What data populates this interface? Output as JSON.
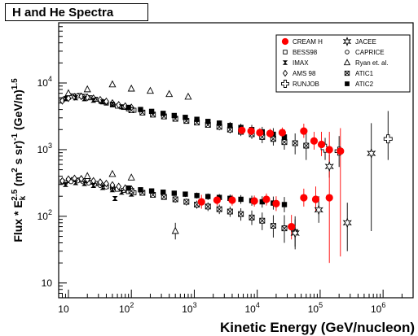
{
  "chart_data": {
    "type": "scatter",
    "title": "H and He Spectra",
    "xlabel": "Kinetic Energy (GeV/nucleon)",
    "ylabel": "Flux * E_k^2.5 (m^2 s sr)^-1 (GeV/n)^1.5",
    "xscale": "log",
    "yscale": "log",
    "xlim": [
      7,
      3000000
    ],
    "ylim": [
      6,
      80000
    ],
    "x_ticks": [
      {
        "value": 10,
        "base": "10",
        "exp": ""
      },
      {
        "value": 100,
        "base": "10",
        "exp": "2"
      },
      {
        "value": 1000,
        "base": "10",
        "exp": "3"
      },
      {
        "value": 10000,
        "base": "10",
        "exp": "4"
      },
      {
        "value": 100000,
        "base": "10",
        "exp": "5"
      },
      {
        "value": 1000000,
        "base": "10",
        "exp": "6"
      }
    ],
    "y_ticks": [
      {
        "value": 10,
        "base": "10",
        "exp": ""
      },
      {
        "value": 100,
        "base": "10",
        "exp": "2"
      },
      {
        "value": 1000,
        "base": "10",
        "exp": "3"
      },
      {
        "value": 10000,
        "base": "10",
        "exp": "4"
      }
    ],
    "legend_position": "top-right",
    "series": [
      {
        "name": "CREAM H",
        "marker": "filled-circle",
        "color": "#ff0000",
        "points": [
          {
            "x": 1300,
            "y": 165,
            "yl": 130,
            "yh": 210
          },
          {
            "x": 2300,
            "y": 175,
            "yl": 145,
            "yh": 210
          },
          {
            "x": 4000,
            "y": 175,
            "yl": 145,
            "yh": 210
          },
          {
            "x": 5700,
            "y": 1950,
            "yl": 1700,
            "yh": 2250
          },
          {
            "x": 8000,
            "y": 1900,
            "yl": 1650,
            "yh": 2200
          },
          {
            "x": 9000,
            "y": 170,
            "yl": 140,
            "yh": 205
          },
          {
            "x": 11000,
            "y": 1800,
            "yl": 1550,
            "yh": 2100
          },
          {
            "x": 14000,
            "y": 180,
            "yl": 145,
            "yh": 220
          },
          {
            "x": 16000,
            "y": 1750,
            "yl": 1500,
            "yh": 2050
          },
          {
            "x": 20000,
            "y": 155,
            "yl": 120,
            "yh": 200
          },
          {
            "x": 25000,
            "y": 1800,
            "yl": 1500,
            "yh": 2150
          },
          {
            "x": 35000,
            "y": 70,
            "yl": 45,
            "yh": 105
          },
          {
            "x": 55000,
            "y": 1900,
            "yl": 1500,
            "yh": 2450
          },
          {
            "x": 55000,
            "y": 190,
            "yl": 140,
            "yh": 260
          },
          {
            "x": 80000,
            "y": 1350,
            "yl": 1000,
            "yh": 1850
          },
          {
            "x": 85000,
            "y": 180,
            "yl": 120,
            "yh": 280
          },
          {
            "x": 105000,
            "y": 1200,
            "yl": 800,
            "yh": 1850
          },
          {
            "x": 140000,
            "y": 1000,
            "yl": 550,
            "yh": 1850
          },
          {
            "x": 140000,
            "y": 190,
            "yl": 20,
            "yh": 600
          },
          {
            "x": 210000,
            "y": 950,
            "yl": 25,
            "yh": 2100
          }
        ]
      },
      {
        "name": "BESS98",
        "marker": "open-square",
        "color": "#000000",
        "points": [
          {
            "x": 8,
            "y": 5600
          },
          {
            "x": 10,
            "y": 6100
          },
          {
            "x": 12,
            "y": 6400
          },
          {
            "x": 15,
            "y": 6500
          },
          {
            "x": 18,
            "y": 6300
          },
          {
            "x": 22,
            "y": 6000
          },
          {
            "x": 27,
            "y": 5700
          },
          {
            "x": 33,
            "y": 5300
          },
          {
            "x": 40,
            "y": 5000
          },
          {
            "x": 50,
            "y": 4700
          },
          {
            "x": 60,
            "y": 4500
          },
          {
            "x": 75,
            "y": 4300
          },
          {
            "x": 90,
            "y": 4100
          },
          {
            "x": 110,
            "y": 3900
          },
          {
            "x": 8,
            "y": 330
          },
          {
            "x": 10,
            "y": 345
          },
          {
            "x": 12,
            "y": 355
          },
          {
            "x": 15,
            "y": 350
          },
          {
            "x": 18,
            "y": 340
          },
          {
            "x": 22,
            "y": 325
          },
          {
            "x": 27,
            "y": 310
          },
          {
            "x": 33,
            "y": 295
          },
          {
            "x": 40,
            "y": 280
          },
          {
            "x": 50,
            "y": 265
          },
          {
            "x": 60,
            "y": 255
          },
          {
            "x": 75,
            "y": 245
          },
          {
            "x": 90,
            "y": 235
          },
          {
            "x": 110,
            "y": 225
          }
        ]
      },
      {
        "name": "IMAX",
        "marker": "bowtie",
        "color": "#000000",
        "points": [
          {
            "x": 9,
            "y": 5800
          },
          {
            "x": 13,
            "y": 6000
          },
          {
            "x": 18,
            "y": 5800
          },
          {
            "x": 25,
            "y": 5500
          },
          {
            "x": 35,
            "y": 5200
          },
          {
            "x": 50,
            "y": 4800
          },
          {
            "x": 70,
            "y": 4400
          },
          {
            "x": 100,
            "y": 4000
          },
          {
            "x": 9,
            "y": 300
          },
          {
            "x": 13,
            "y": 320
          },
          {
            "x": 18,
            "y": 310
          },
          {
            "x": 25,
            "y": 290
          },
          {
            "x": 35,
            "y": 270
          },
          {
            "x": 50,
            "y": 250
          },
          {
            "x": 55,
            "y": 185
          },
          {
            "x": 70,
            "y": 230
          },
          {
            "x": 100,
            "y": 215
          }
        ]
      },
      {
        "name": "AMS 98",
        "marker": "open-diamond",
        "color": "#000000",
        "points": [
          {
            "x": 8,
            "y": 5400
          },
          {
            "x": 10,
            "y": 5900
          },
          {
            "x": 12.5,
            "y": 6200
          },
          {
            "x": 16,
            "y": 6300
          },
          {
            "x": 20,
            "y": 6100
          },
          {
            "x": 25,
            "y": 5900
          },
          {
            "x": 32,
            "y": 5600
          },
          {
            "x": 40,
            "y": 5300
          },
          {
            "x": 50,
            "y": 5000
          },
          {
            "x": 63,
            "y": 4700
          },
          {
            "x": 80,
            "y": 4500
          },
          {
            "x": 100,
            "y": 4300
          },
          {
            "x": 8,
            "y": 340
          },
          {
            "x": 10,
            "y": 360
          },
          {
            "x": 12.5,
            "y": 370
          },
          {
            "x": 16,
            "y": 365
          },
          {
            "x": 20,
            "y": 355
          },
          {
            "x": 25,
            "y": 340
          },
          {
            "x": 32,
            "y": 325
          },
          {
            "x": 40,
            "y": 310
          },
          {
            "x": 50,
            "y": 295
          },
          {
            "x": 63,
            "y": 280
          },
          {
            "x": 80,
            "y": 265
          },
          {
            "x": 100,
            "y": 255
          }
        ]
      },
      {
        "name": "RUNJOB",
        "marker": "open-cross",
        "color": "#000000",
        "points": [
          {
            "x": 120000,
            "y": 1050,
            "yl": 700,
            "yh": 1500
          },
          {
            "x": 200000,
            "y": 950,
            "yl": 550,
            "yh": 1600
          },
          {
            "x": 1200000,
            "y": 1450,
            "yl": 700,
            "yh": 3800
          }
        ]
      },
      {
        "name": "JACEE",
        "marker": "open-star",
        "color": "#000000",
        "points": [
          {
            "x": 40000,
            "y": 56,
            "yl": 35,
            "yh": 90
          },
          {
            "x": 95000,
            "y": 125,
            "yl": 80,
            "yh": 200
          },
          {
            "x": 140000,
            "y": 560,
            "yl": 380,
            "yh": 850
          },
          {
            "x": 270000,
            "y": 80,
            "yl": 30,
            "yh": 160
          },
          {
            "x": 650000,
            "y": 880,
            "yl": 60,
            "yh": 2500
          }
        ]
      },
      {
        "name": "CAPRICE",
        "marker": "open-circle",
        "color": "#000000",
        "points": [
          {
            "x": 9,
            "y": 5900
          },
          {
            "x": 11,
            "y": 6300
          },
          {
            "x": 14,
            "y": 6400
          },
          {
            "x": 17,
            "y": 6200
          },
          {
            "x": 21,
            "y": 6000
          },
          {
            "x": 26,
            "y": 5700
          },
          {
            "x": 32,
            "y": 5400
          },
          {
            "x": 40,
            "y": 5100
          },
          {
            "x": 9,
            "y": 320
          },
          {
            "x": 11,
            "y": 330
          },
          {
            "x": 14,
            "y": 340
          },
          {
            "x": 17,
            "y": 330
          },
          {
            "x": 21,
            "y": 315
          },
          {
            "x": 26,
            "y": 300
          },
          {
            "x": 32,
            "y": 290
          },
          {
            "x": 40,
            "y": 275
          }
        ]
      },
      {
        "name": "Ryan et. al.",
        "marker": "open-triangle",
        "color": "#000000",
        "points": [
          {
            "x": 10,
            "y": 7000
          },
          {
            "x": 20,
            "y": 8000
          },
          {
            "x": 50,
            "y": 9500
          },
          {
            "x": 100,
            "y": 8200
          },
          {
            "x": 200,
            "y": 7600
          },
          {
            "x": 400,
            "y": 6800
          },
          {
            "x": 800,
            "y": 6200
          },
          {
            "x": 20,
            "y": 400
          },
          {
            "x": 50,
            "y": 430
          },
          {
            "x": 100,
            "y": 380
          },
          {
            "x": 500,
            "y": 60,
            "yl": 45,
            "yh": 80
          }
        ]
      },
      {
        "name": "ATIC1",
        "marker": "x-square",
        "color": "#000000",
        "points": [
          {
            "x": 100,
            "y": 3900,
            "yl": 3700,
            "yh": 4100
          },
          {
            "x": 150,
            "y": 3600,
            "yl": 3400,
            "yh": 3800
          },
          {
            "x": 220,
            "y": 3350,
            "yl": 3150,
            "yh": 3550
          },
          {
            "x": 330,
            "y": 3150,
            "yl": 2950,
            "yh": 3350
          },
          {
            "x": 500,
            "y": 2900,
            "yl": 2700,
            "yh": 3100
          },
          {
            "x": 750,
            "y": 2700,
            "yl": 2500,
            "yh": 2900
          },
          {
            "x": 1100,
            "y": 2550,
            "yl": 2350,
            "yh": 2750
          },
          {
            "x": 1650,
            "y": 2350,
            "yl": 2150,
            "yh": 2600
          },
          {
            "x": 2500,
            "y": 2200,
            "yl": 1950,
            "yh": 2450
          },
          {
            "x": 3700,
            "y": 2000,
            "yl": 1750,
            "yh": 2300
          },
          {
            "x": 5500,
            "y": 1850,
            "yl": 1600,
            "yh": 2150
          },
          {
            "x": 8200,
            "y": 1700,
            "yl": 1450,
            "yh": 2000
          },
          {
            "x": 12000,
            "y": 1550,
            "yl": 1250,
            "yh": 1900
          },
          {
            "x": 18000,
            "y": 1450,
            "yl": 1150,
            "yh": 1850
          },
          {
            "x": 27000,
            "y": 1300,
            "yl": 1000,
            "yh": 1700
          },
          {
            "x": 40000,
            "y": 1250,
            "yl": 850,
            "yh": 1750
          },
          {
            "x": 60000,
            "y": 1150,
            "yl": 700,
            "yh": 1750
          },
          {
            "x": 100,
            "y": 240,
            "yl": 220,
            "yh": 260
          },
          {
            "x": 150,
            "y": 225,
            "yl": 205,
            "yh": 245
          },
          {
            "x": 220,
            "y": 210,
            "yl": 190,
            "yh": 230
          },
          {
            "x": 330,
            "y": 195,
            "yl": 175,
            "yh": 215
          },
          {
            "x": 500,
            "y": 180,
            "yl": 160,
            "yh": 200
          },
          {
            "x": 750,
            "y": 165,
            "yl": 145,
            "yh": 185
          },
          {
            "x": 1100,
            "y": 150,
            "yl": 130,
            "yh": 172
          },
          {
            "x": 1650,
            "y": 140,
            "yl": 120,
            "yh": 162
          },
          {
            "x": 2500,
            "y": 128,
            "yl": 108,
            "yh": 150
          },
          {
            "x": 3700,
            "y": 118,
            "yl": 98,
            "yh": 140
          },
          {
            "x": 5500,
            "y": 108,
            "yl": 86,
            "yh": 132
          },
          {
            "x": 8200,
            "y": 96,
            "yl": 74,
            "yh": 122
          },
          {
            "x": 12000,
            "y": 86,
            "yl": 62,
            "yh": 114
          },
          {
            "x": 18000,
            "y": 72,
            "yl": 48,
            "yh": 104
          },
          {
            "x": 27000,
            "y": 66,
            "yl": 40,
            "yh": 104
          },
          {
            "x": 40000,
            "y": 58,
            "yl": 32,
            "yh": 100
          }
        ]
      },
      {
        "name": "ATIC2",
        "marker": "filled-square",
        "color": "#000000",
        "points": [
          {
            "x": 90,
            "y": 4300,
            "yl": 4100,
            "yh": 4500
          },
          {
            "x": 140,
            "y": 4000,
            "yl": 3800,
            "yh": 4200
          },
          {
            "x": 210,
            "y": 3750,
            "yl": 3550,
            "yh": 3950
          },
          {
            "x": 320,
            "y": 3500,
            "yl": 3300,
            "yh": 3700
          },
          {
            "x": 480,
            "y": 3250,
            "yl": 3050,
            "yh": 3450
          },
          {
            "x": 720,
            "y": 3050,
            "yl": 2850,
            "yh": 3250
          },
          {
            "x": 1100,
            "y": 2850,
            "yl": 2650,
            "yh": 3050
          },
          {
            "x": 1650,
            "y": 2650,
            "yl": 2450,
            "yh": 2900
          },
          {
            "x": 2500,
            "y": 2500,
            "yl": 2250,
            "yh": 2750
          },
          {
            "x": 3700,
            "y": 2300,
            "yl": 2050,
            "yh": 2600
          },
          {
            "x": 5500,
            "y": 2150,
            "yl": 1900,
            "yh": 2450
          },
          {
            "x": 8200,
            "y": 2000,
            "yl": 1700,
            "yh": 2350
          },
          {
            "x": 12000,
            "y": 1850,
            "yl": 1550,
            "yh": 2200
          },
          {
            "x": 18000,
            "y": 1700,
            "yl": 1400,
            "yh": 2100
          },
          {
            "x": 27000,
            "y": 1550,
            "yl": 1200,
            "yh": 2000
          },
          {
            "x": 90,
            "y": 265,
            "yl": 245,
            "yh": 285
          },
          {
            "x": 140,
            "y": 250,
            "yl": 230,
            "yh": 270
          },
          {
            "x": 210,
            "y": 240,
            "yl": 220,
            "yh": 260
          },
          {
            "x": 320,
            "y": 230,
            "yl": 210,
            "yh": 250
          },
          {
            "x": 480,
            "y": 222,
            "yl": 202,
            "yh": 242
          },
          {
            "x": 720,
            "y": 215,
            "yl": 195,
            "yh": 235
          },
          {
            "x": 1100,
            "y": 205,
            "yl": 185,
            "yh": 227
          },
          {
            "x": 1650,
            "y": 198,
            "yl": 176,
            "yh": 220
          },
          {
            "x": 2500,
            "y": 192,
            "yl": 170,
            "yh": 216
          },
          {
            "x": 3700,
            "y": 186,
            "yl": 162,
            "yh": 212
          },
          {
            "x": 5500,
            "y": 180,
            "yl": 154,
            "yh": 208
          },
          {
            "x": 8200,
            "y": 172,
            "yl": 144,
            "yh": 204
          },
          {
            "x": 12000,
            "y": 165,
            "yl": 135,
            "yh": 200
          },
          {
            "x": 18000,
            "y": 158,
            "yl": 126,
            "yh": 198
          },
          {
            "x": 27000,
            "y": 150,
            "yl": 115,
            "yh": 195
          }
        ]
      }
    ]
  }
}
